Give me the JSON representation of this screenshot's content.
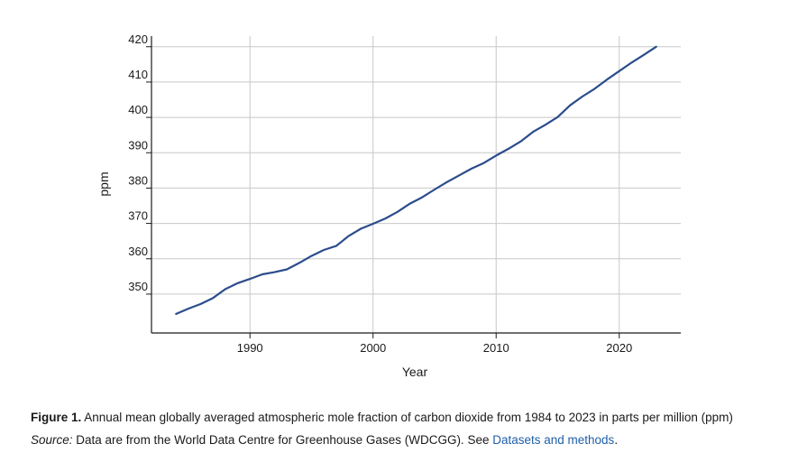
{
  "chart_data": {
    "type": "line",
    "title": "",
    "xlabel": "Year",
    "ylabel": "ppm",
    "xlim": [
      1982,
      2025
    ],
    "ylim": [
      339,
      423
    ],
    "x_ticks": [
      1990,
      2000,
      2010,
      2020
    ],
    "y_ticks": [
      350,
      360,
      370,
      380,
      390,
      400,
      410,
      420
    ],
    "grid": true,
    "legend": "none",
    "series": [
      {
        "color": "#2b4c8c",
        "x": [
          1984,
          1985,
          1986,
          1987,
          1988,
          1989,
          1990,
          1991,
          1992,
          1993,
          1994,
          1995,
          1996,
          1997,
          1998,
          1999,
          2000,
          2001,
          2002,
          2003,
          2004,
          2005,
          2006,
          2007,
          2008,
          2009,
          2010,
          2011,
          2012,
          2013,
          2014,
          2015,
          2016,
          2017,
          2018,
          2019,
          2020,
          2021,
          2022,
          2023
        ],
        "values": [
          344.4,
          345.9,
          347.2,
          348.9,
          351.4,
          353.1,
          354.3,
          355.6,
          356.2,
          357.0,
          358.8,
          360.8,
          362.5,
          363.6,
          366.4,
          368.5,
          369.9,
          371.4,
          373.3,
          375.6,
          377.4,
          379.6,
          381.7,
          383.6,
          385.5,
          387.1,
          389.2,
          391.1,
          393.2,
          395.9,
          397.9,
          400.1,
          403.4,
          405.9,
          408.1,
          410.7,
          413.1,
          415.5,
          417.7,
          420.0
        ]
      }
    ]
  },
  "caption": {
    "figure_label": "Figure 1.",
    "figure_text": " Annual mean globally averaged atmospheric mole fraction of carbon dioxide from 1984 to 2023 in parts per million (ppm)",
    "source_label": "Source:",
    "source_text": " Data are from the World Data Centre for Greenhouse Gases (WDCGG). See ",
    "link_text": "Datasets and methods",
    "end_text": "."
  }
}
